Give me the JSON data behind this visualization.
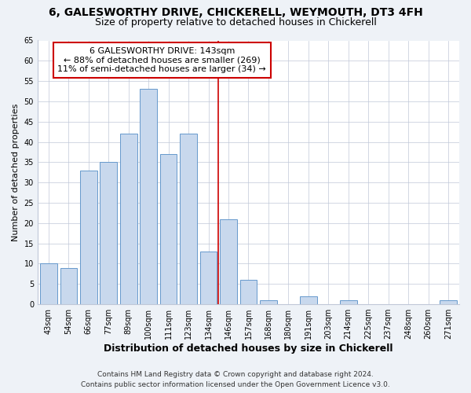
{
  "title": "6, GALESWORTHY DRIVE, CHICKERELL, WEYMOUTH, DT3 4FH",
  "subtitle": "Size of property relative to detached houses in Chickerell",
  "xlabel": "Distribution of detached houses by size in Chickerell",
  "ylabel": "Number of detached properties",
  "bar_labels": [
    "43sqm",
    "54sqm",
    "66sqm",
    "77sqm",
    "89sqm",
    "100sqm",
    "111sqm",
    "123sqm",
    "134sqm",
    "146sqm",
    "157sqm",
    "168sqm",
    "180sqm",
    "191sqm",
    "203sqm",
    "214sqm",
    "225sqm",
    "237sqm",
    "248sqm",
    "260sqm",
    "271sqm"
  ],
  "bar_values": [
    10,
    9,
    33,
    35,
    42,
    53,
    37,
    42,
    13,
    21,
    6,
    1,
    0,
    2,
    0,
    1,
    0,
    0,
    0,
    0,
    1
  ],
  "bar_color": "#c8d8ed",
  "bar_edge_color": "#6699cc",
  "vline_index": 9,
  "vline_color": "#cc0000",
  "annotation_line1": "6 GALESWORTHY DRIVE: 143sqm",
  "annotation_line2": "← 88% of detached houses are smaller (269)",
  "annotation_line3": "11% of semi-detached houses are larger (34) →",
  "ylim": [
    0,
    65
  ],
  "yticks": [
    0,
    5,
    10,
    15,
    20,
    25,
    30,
    35,
    40,
    45,
    50,
    55,
    60,
    65
  ],
  "footer1": "Contains HM Land Registry data © Crown copyright and database right 2024.",
  "footer2": "Contains public sector information licensed under the Open Government Licence v3.0.",
  "bg_color": "#eef2f7",
  "plot_bg_color": "#ffffff",
  "title_fontsize": 10,
  "subtitle_fontsize": 9,
  "xlabel_fontsize": 9,
  "ylabel_fontsize": 8,
  "tick_fontsize": 7,
  "annot_fontsize": 8,
  "footer_fontsize": 6.5
}
